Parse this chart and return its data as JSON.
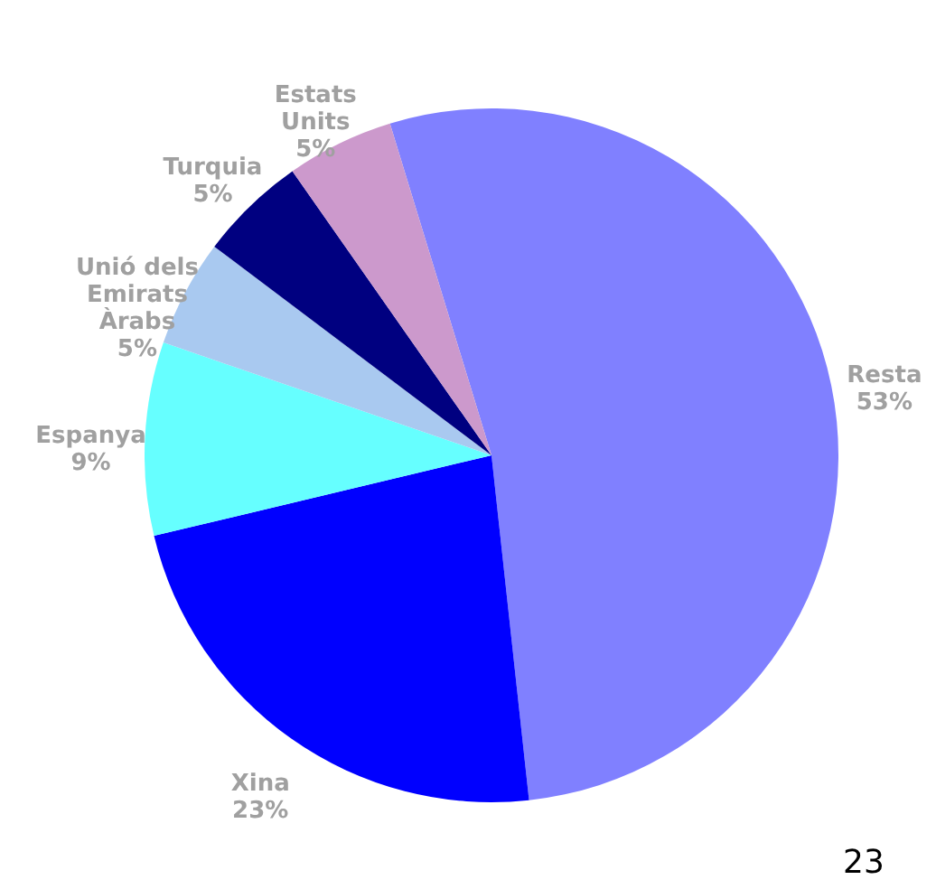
{
  "chart_data": {
    "type": "pie",
    "categories": [
      "Resta",
      "Xina",
      "Espanya",
      "Unió dels Emirats Àrabs",
      "Turquia",
      "Estats Units"
    ],
    "values": [
      53,
      23,
      9,
      5,
      5,
      5
    ],
    "value_labels": [
      "53%",
      "23%",
      "9%",
      "5%",
      "5%",
      "5%"
    ],
    "colors": [
      "#8080ff",
      "#0000ff",
      "#66ffff",
      "#a9c9f0",
      "#000080",
      "#cc99cc"
    ],
    "annotations": [
      "23"
    ]
  }
}
